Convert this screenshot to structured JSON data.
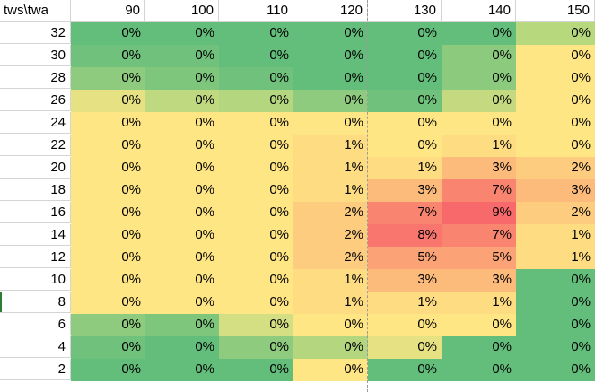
{
  "corner_label": "tws\\twa",
  "columns": [
    "90",
    "100",
    "110",
    "120",
    "130",
    "140",
    "150"
  ],
  "rows": [
    {
      "tws": "32",
      "cells": [
        {
          "v": "0%",
          "c": "#63be7b"
        },
        {
          "v": "0%",
          "c": "#63be7b"
        },
        {
          "v": "0%",
          "c": "#63be7b"
        },
        {
          "v": "0%",
          "c": "#63be7b"
        },
        {
          "v": "0%",
          "c": "#63be7b"
        },
        {
          "v": "0%",
          "c": "#63be7b"
        },
        {
          "v": "0%",
          "c": "#b8d87e"
        }
      ]
    },
    {
      "tws": "30",
      "cells": [
        {
          "v": "0%",
          "c": "#70c17c"
        },
        {
          "v": "0%",
          "c": "#70c17c"
        },
        {
          "v": "0%",
          "c": "#63be7b"
        },
        {
          "v": "0%",
          "c": "#63be7b"
        },
        {
          "v": "0%",
          "c": "#63be7b"
        },
        {
          "v": "0%",
          "c": "#8ccb7d"
        },
        {
          "v": "0%",
          "c": "#ffe684"
        }
      ]
    },
    {
      "tws": "28",
      "cells": [
        {
          "v": "0%",
          "c": "#8ecb7e"
        },
        {
          "v": "0%",
          "c": "#7fc67d"
        },
        {
          "v": "0%",
          "c": "#70c17c"
        },
        {
          "v": "0%",
          "c": "#63be7b"
        },
        {
          "v": "0%",
          "c": "#63be7b"
        },
        {
          "v": "0%",
          "c": "#8ccb7d"
        },
        {
          "v": "0%",
          "c": "#ffe684"
        }
      ]
    },
    {
      "tws": "26",
      "cells": [
        {
          "v": "0%",
          "c": "#e6e283"
        },
        {
          "v": "0%",
          "c": "#bfd980"
        },
        {
          "v": "0%",
          "c": "#b4d67f"
        },
        {
          "v": "0%",
          "c": "#8ecb7e"
        },
        {
          "v": "0%",
          "c": "#70c17c"
        },
        {
          "v": "0%",
          "c": "#c5da80"
        },
        {
          "v": "0%",
          "c": "#ffe684"
        }
      ]
    },
    {
      "tws": "24",
      "cells": [
        {
          "v": "0%",
          "c": "#ffe684"
        },
        {
          "v": "0%",
          "c": "#ffe684"
        },
        {
          "v": "0%",
          "c": "#ffe684"
        },
        {
          "v": "0%",
          "c": "#ffe684"
        },
        {
          "v": "0%",
          "c": "#ffe684"
        },
        {
          "v": "0%",
          "c": "#ffe684"
        },
        {
          "v": "0%",
          "c": "#ffe684"
        }
      ]
    },
    {
      "tws": "22",
      "cells": [
        {
          "v": "0%",
          "c": "#ffe684"
        },
        {
          "v": "0%",
          "c": "#ffe684"
        },
        {
          "v": "0%",
          "c": "#ffe684"
        },
        {
          "v": "1%",
          "c": "#fedd82"
        },
        {
          "v": "0%",
          "c": "#ffe684"
        },
        {
          "v": "1%",
          "c": "#fedd82"
        },
        {
          "v": "0%",
          "c": "#ffe684"
        }
      ]
    },
    {
      "tws": "20",
      "cells": [
        {
          "v": "0%",
          "c": "#ffe684"
        },
        {
          "v": "0%",
          "c": "#ffe684"
        },
        {
          "v": "0%",
          "c": "#ffe684"
        },
        {
          "v": "1%",
          "c": "#fedd82"
        },
        {
          "v": "1%",
          "c": "#fedd82"
        },
        {
          "v": "3%",
          "c": "#fcbb7b"
        },
        {
          "v": "2%",
          "c": "#fdcc7e"
        }
      ]
    },
    {
      "tws": "18",
      "cells": [
        {
          "v": "0%",
          "c": "#ffe684"
        },
        {
          "v": "0%",
          "c": "#ffe684"
        },
        {
          "v": "0%",
          "c": "#ffe684"
        },
        {
          "v": "1%",
          "c": "#fedd82"
        },
        {
          "v": "3%",
          "c": "#fcbb7b"
        },
        {
          "v": "7%",
          "c": "#f98570"
        },
        {
          "v": "3%",
          "c": "#fcbb7b"
        }
      ]
    },
    {
      "tws": "16",
      "cells": [
        {
          "v": "0%",
          "c": "#ffe684"
        },
        {
          "v": "0%",
          "c": "#ffe684"
        },
        {
          "v": "0%",
          "c": "#ffe684"
        },
        {
          "v": "2%",
          "c": "#fdcc7e"
        },
        {
          "v": "7%",
          "c": "#f98570"
        },
        {
          "v": "9%",
          "c": "#f8696b"
        },
        {
          "v": "2%",
          "c": "#fdcc7e"
        }
      ]
    },
    {
      "tws": "14",
      "cells": [
        {
          "v": "0%",
          "c": "#ffe684"
        },
        {
          "v": "0%",
          "c": "#ffe684"
        },
        {
          "v": "0%",
          "c": "#ffe684"
        },
        {
          "v": "2%",
          "c": "#fdcc7e"
        },
        {
          "v": "8%",
          "c": "#f8766d"
        },
        {
          "v": "7%",
          "c": "#f98570"
        },
        {
          "v": "1%",
          "c": "#fedd82"
        }
      ]
    },
    {
      "tws": "12",
      "cells": [
        {
          "v": "0%",
          "c": "#ffe684"
        },
        {
          "v": "0%",
          "c": "#ffe684"
        },
        {
          "v": "0%",
          "c": "#ffe684"
        },
        {
          "v": "2%",
          "c": "#fdcc7e"
        },
        {
          "v": "5%",
          "c": "#fba276"
        },
        {
          "v": "5%",
          "c": "#fba276"
        },
        {
          "v": "1%",
          "c": "#fedd82"
        }
      ]
    },
    {
      "tws": "10",
      "cells": [
        {
          "v": "0%",
          "c": "#ffe684"
        },
        {
          "v": "0%",
          "c": "#ffe684"
        },
        {
          "v": "0%",
          "c": "#ffe684"
        },
        {
          "v": "1%",
          "c": "#fedd82"
        },
        {
          "v": "3%",
          "c": "#fcbb7b"
        },
        {
          "v": "3%",
          "c": "#fcbb7b"
        },
        {
          "v": "0%",
          "c": "#63be7b"
        }
      ]
    },
    {
      "tws": "8",
      "cells": [
        {
          "v": "0%",
          "c": "#ffe684"
        },
        {
          "v": "0%",
          "c": "#ffe684"
        },
        {
          "v": "0%",
          "c": "#ffe684"
        },
        {
          "v": "1%",
          "c": "#fedd82"
        },
        {
          "v": "1%",
          "c": "#fedd82"
        },
        {
          "v": "1%",
          "c": "#fedd82"
        },
        {
          "v": "0%",
          "c": "#63be7b"
        }
      ]
    },
    {
      "tws": "6",
      "cells": [
        {
          "v": "0%",
          "c": "#8ecb7e"
        },
        {
          "v": "0%",
          "c": "#7fc67d"
        },
        {
          "v": "0%",
          "c": "#d4de82"
        },
        {
          "v": "0%",
          "c": "#ffe684"
        },
        {
          "v": "0%",
          "c": "#ffe684"
        },
        {
          "v": "0%",
          "c": "#ffe684"
        },
        {
          "v": "0%",
          "c": "#63be7b"
        }
      ]
    },
    {
      "tws": "4",
      "cells": [
        {
          "v": "0%",
          "c": "#70c17c"
        },
        {
          "v": "0%",
          "c": "#63be7b"
        },
        {
          "v": "0%",
          "c": "#8ecb7e"
        },
        {
          "v": "0%",
          "c": "#b4d67f"
        },
        {
          "v": "0%",
          "c": "#e6e283"
        },
        {
          "v": "0%",
          "c": "#63be7b"
        },
        {
          "v": "0%",
          "c": "#63be7b"
        }
      ]
    },
    {
      "tws": "2",
      "cells": [
        {
          "v": "0%",
          "c": "#63be7b"
        },
        {
          "v": "0%",
          "c": "#63be7b"
        },
        {
          "v": "0%",
          "c": "#63be7b"
        },
        {
          "v": "0%",
          "c": "#ffe684"
        },
        {
          "v": "0%",
          "c": "#63be7b"
        },
        {
          "v": "0%",
          "c": "#63be7b"
        },
        {
          "v": "0%",
          "c": "#63be7b"
        }
      ]
    }
  ]
}
